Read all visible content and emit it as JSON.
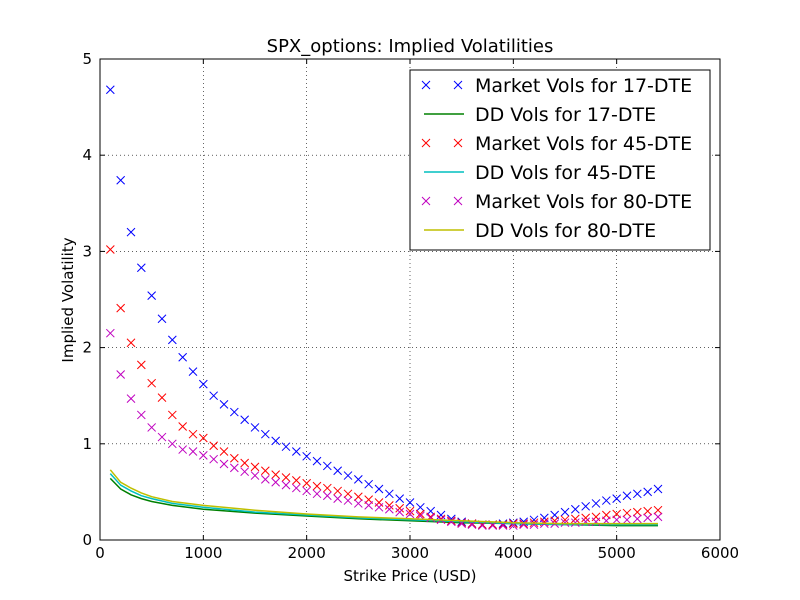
{
  "chart_data": {
    "type": "scatter",
    "title": "SPX_options: Implied Volatilities",
    "xlabel": "Strike Price (USD)",
    "ylabel": "Implied Volatility",
    "xlim": [
      0,
      6000
    ],
    "ylim": [
      0,
      5
    ],
    "xticks": [
      0,
      1000,
      2000,
      3000,
      4000,
      5000,
      6000
    ],
    "yticks": [
      0,
      1,
      2,
      3,
      4,
      5
    ],
    "grid": true,
    "legend_position": "top-right",
    "series": [
      {
        "name": "Market Vols for 17-DTE",
        "kind": "markers",
        "marker": "x",
        "color": "#0000ff",
        "x": [
          100,
          200,
          300,
          400,
          500,
          600,
          700,
          800,
          900,
          1000,
          1100,
          1200,
          1300,
          1400,
          1500,
          1600,
          1700,
          1800,
          1900,
          2000,
          2100,
          2200,
          2300,
          2400,
          2500,
          2600,
          2700,
          2800,
          2900,
          3000,
          3100,
          3200,
          3300,
          3400,
          3500,
          3600,
          3700,
          3800,
          3900,
          4000,
          4100,
          4200,
          4300,
          4400,
          4500,
          4600,
          4700,
          4800,
          4900,
          5000,
          5100,
          5200,
          5300,
          5400
        ],
        "y": [
          4.68,
          3.74,
          3.2,
          2.83,
          2.54,
          2.3,
          2.08,
          1.9,
          1.75,
          1.62,
          1.5,
          1.41,
          1.33,
          1.25,
          1.17,
          1.1,
          1.03,
          0.97,
          0.92,
          0.87,
          0.82,
          0.77,
          0.72,
          0.67,
          0.63,
          0.58,
          0.53,
          0.48,
          0.43,
          0.39,
          0.34,
          0.3,
          0.26,
          0.22,
          0.19,
          0.17,
          0.16,
          0.16,
          0.17,
          0.18,
          0.19,
          0.21,
          0.23,
          0.26,
          0.29,
          0.32,
          0.35,
          0.38,
          0.41,
          0.43,
          0.46,
          0.48,
          0.5,
          0.53
        ]
      },
      {
        "name": "DD Vols for 17-DTE",
        "kind": "line",
        "color": "#008000",
        "x": [
          100,
          200,
          300,
          400,
          500,
          700,
          1000,
          1500,
          2000,
          2500,
          3000,
          3500,
          4000,
          4500,
          5000,
          5400
        ],
        "y": [
          0.64,
          0.53,
          0.47,
          0.43,
          0.4,
          0.36,
          0.32,
          0.28,
          0.25,
          0.22,
          0.2,
          0.18,
          0.17,
          0.16,
          0.15,
          0.15
        ]
      },
      {
        "name": "Market Vols for 45-DTE",
        "kind": "markers",
        "marker": "x",
        "color": "#ff0000",
        "x": [
          100,
          200,
          300,
          400,
          500,
          600,
          700,
          800,
          900,
          1000,
          1100,
          1200,
          1300,
          1400,
          1500,
          1600,
          1700,
          1800,
          1900,
          2000,
          2100,
          2200,
          2300,
          2400,
          2500,
          2600,
          2700,
          2800,
          2900,
          3000,
          3100,
          3200,
          3300,
          3400,
          3500,
          3600,
          3700,
          3800,
          3900,
          4000,
          4100,
          4200,
          4300,
          4400,
          4500,
          4600,
          4700,
          4800,
          4900,
          5000,
          5100,
          5200,
          5300,
          5400
        ],
        "y": [
          3.02,
          2.41,
          2.05,
          1.82,
          1.63,
          1.48,
          1.3,
          1.18,
          1.1,
          1.06,
          0.98,
          0.92,
          0.85,
          0.8,
          0.76,
          0.72,
          0.68,
          0.65,
          0.62,
          0.59,
          0.56,
          0.54,
          0.51,
          0.48,
          0.45,
          0.42,
          0.39,
          0.36,
          0.33,
          0.3,
          0.27,
          0.24,
          0.22,
          0.2,
          0.18,
          0.17,
          0.16,
          0.16,
          0.16,
          0.17,
          0.17,
          0.18,
          0.19,
          0.2,
          0.21,
          0.22,
          0.23,
          0.24,
          0.26,
          0.27,
          0.28,
          0.29,
          0.3,
          0.31
        ]
      },
      {
        "name": "DD Vols for 45-DTE",
        "kind": "line",
        "color": "#00bfbf",
        "x": [
          100,
          200,
          300,
          400,
          500,
          700,
          1000,
          1500,
          2000,
          2500,
          3000,
          3500,
          4000,
          4500,
          5000,
          5400
        ],
        "y": [
          0.69,
          0.57,
          0.51,
          0.46,
          0.43,
          0.38,
          0.34,
          0.29,
          0.26,
          0.23,
          0.21,
          0.19,
          0.17,
          0.16,
          0.16,
          0.16
        ]
      },
      {
        "name": "Market Vols for 80-DTE",
        "kind": "markers",
        "marker": "x",
        "color": "#bf00bf",
        "x": [
          100,
          200,
          300,
          400,
          500,
          600,
          700,
          800,
          900,
          1000,
          1100,
          1200,
          1300,
          1400,
          1500,
          1600,
          1700,
          1800,
          1900,
          2000,
          2100,
          2200,
          2300,
          2400,
          2500,
          2600,
          2700,
          2800,
          2900,
          3000,
          3100,
          3200,
          3300,
          3400,
          3500,
          3600,
          3700,
          3800,
          3900,
          4000,
          4100,
          4200,
          4300,
          4400,
          4500,
          4600,
          4700,
          4800,
          4900,
          5000,
          5100,
          5200,
          5300,
          5400
        ],
        "y": [
          2.15,
          1.72,
          1.47,
          1.3,
          1.17,
          1.07,
          1.0,
          0.94,
          0.92,
          0.88,
          0.84,
          0.79,
          0.75,
          0.71,
          0.67,
          0.63,
          0.6,
          0.57,
          0.54,
          0.51,
          0.48,
          0.46,
          0.43,
          0.41,
          0.38,
          0.36,
          0.34,
          0.32,
          0.29,
          0.27,
          0.25,
          0.23,
          0.21,
          0.19,
          0.17,
          0.16,
          0.15,
          0.15,
          0.15,
          0.15,
          0.16,
          0.16,
          0.17,
          0.17,
          0.18,
          0.18,
          0.19,
          0.19,
          0.2,
          0.21,
          0.21,
          0.22,
          0.23,
          0.24
        ]
      },
      {
        "name": "DD Vols for 80-DTE",
        "kind": "line",
        "color": "#bfbf00",
        "x": [
          100,
          200,
          300,
          400,
          500,
          700,
          1000,
          1500,
          2000,
          2500,
          3000,
          3500,
          4000,
          4500,
          5000,
          5400
        ],
        "y": [
          0.73,
          0.6,
          0.54,
          0.49,
          0.45,
          0.4,
          0.36,
          0.31,
          0.27,
          0.24,
          0.22,
          0.2,
          0.18,
          0.17,
          0.17,
          0.17
        ]
      }
    ]
  }
}
